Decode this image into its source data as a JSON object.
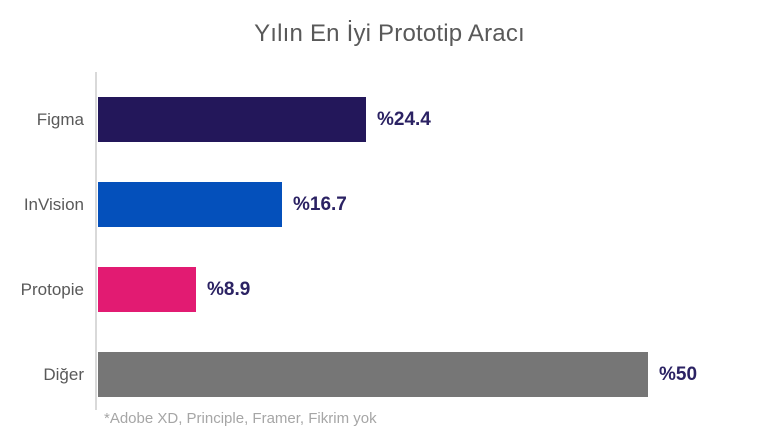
{
  "title": "Yılın En İyi Prototip Aracı",
  "footnote": "*Adobe XD, Principle, Framer, Fikrim yok",
  "colors": {
    "title_text": "#595959",
    "category_label": "#595959",
    "value_label": "#2b2263",
    "axis_line": "#d9d9d9",
    "footnote_text": "#a6a6a6"
  },
  "chart_data": {
    "type": "bar",
    "orientation": "horizontal",
    "title": "Yılın En İyi Prototip Aracı",
    "categories": [
      "Figma",
      "InVision",
      "Protopie",
      "Diğer"
    ],
    "values": [
      24.4,
      16.7,
      8.9,
      50
    ],
    "value_labels": [
      "%24.4",
      "%16.7",
      "%8.9",
      "%50"
    ],
    "bar_colors": [
      "#23175a",
      "#0450bb",
      "#e21b72",
      "#767676"
    ],
    "xlabel": "",
    "ylabel": "",
    "xlim": [
      0,
      50
    ],
    "grid": false,
    "legend": false,
    "annotations": [
      "*Adobe XD, Principle, Framer, Fikrim yok"
    ]
  }
}
